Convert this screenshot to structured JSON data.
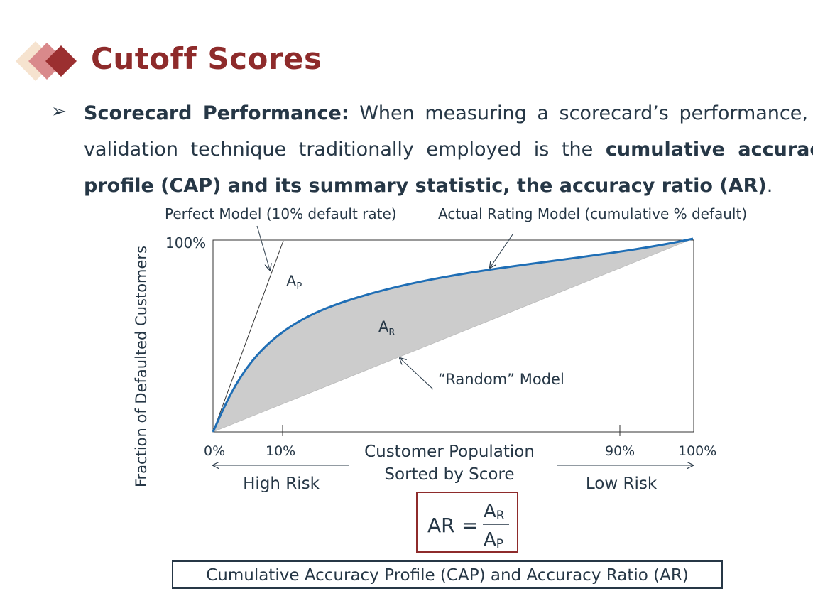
{
  "slide": {
    "title": "Cutoff Scores",
    "bullet": {
      "lead": "Scorecard Performance:",
      "line1_rest": " When measuring a scorecard’s performance, the",
      "line2_plain": "validation technique traditionally employed is the ",
      "line2_bold": "cumulative accuracy",
      "line3_bold": "profile (CAP) and its summary statistic, the accuracy ratio (AR)",
      "line3_end": "."
    }
  },
  "diagram": {
    "ylabel": "Fraction of Defaulted Customers",
    "y_top_tick": "100%",
    "x_ticks": [
      "0%",
      "10%",
      "90%",
      "100%"
    ],
    "x_title_line1": "Customer Population",
    "x_title_line2": "Sorted by Score",
    "left_arrow_label": "High Risk",
    "right_arrow_label": "Low Risk",
    "annotations": {
      "perfect_model": "Perfect Model (10% default rate)",
      "actual_model": "Actual Rating Model (cumulative % default)",
      "random_model": "“Random” Model",
      "area_p": "A",
      "area_p_sub": "P",
      "area_r": "A",
      "area_r_sub": "R"
    },
    "colors": {
      "curve": "#1f6eb5",
      "shaded_area": "#cccccc",
      "frame": "#333333"
    },
    "formula": {
      "lhs": "AR",
      "equals": "=",
      "num": "A",
      "num_sub": "R",
      "den": "A",
      "den_sub": "P"
    },
    "caption": "Cumulative Accuracy Profile (CAP) and Accuracy Ratio (AR)"
  },
  "theme": {
    "accent": "#8e2b2b",
    "text": "#263746"
  }
}
